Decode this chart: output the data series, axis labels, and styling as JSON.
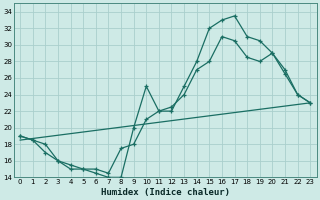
{
  "xlabel": "Humidex (Indice chaleur)",
  "background_color": "#ceeae6",
  "grid_color": "#aacfcc",
  "line_color": "#1a6e63",
  "xlim": [
    -0.5,
    23.5
  ],
  "ylim": [
    14,
    35
  ],
  "xticks": [
    0,
    1,
    2,
    3,
    4,
    5,
    6,
    7,
    8,
    9,
    10,
    11,
    12,
    13,
    14,
    15,
    16,
    17,
    18,
    19,
    20,
    21,
    22,
    23
  ],
  "yticks": [
    14,
    16,
    18,
    20,
    22,
    24,
    26,
    28,
    30,
    32,
    34
  ],
  "line1_x": [
    0,
    1,
    2,
    3,
    4,
    5,
    6,
    7,
    8,
    9,
    10,
    11,
    12,
    13,
    14,
    15,
    16,
    17,
    18,
    19,
    20,
    21,
    22,
    23
  ],
  "line1_y": [
    19,
    18.5,
    17,
    16,
    15,
    15,
    14.5,
    14,
    14,
    20,
    25,
    22,
    22,
    25,
    28,
    32,
    33,
    33.5,
    31,
    30.5,
    29,
    27,
    24,
    23
  ],
  "line2_x": [
    0,
    1,
    2,
    3,
    4,
    5,
    6,
    7,
    8,
    9,
    10,
    11,
    12,
    13,
    14,
    15,
    16,
    17,
    18,
    19,
    20,
    21,
    22,
    23
  ],
  "line2_y": [
    19,
    18.5,
    18,
    16,
    15.5,
    15,
    15,
    14.5,
    17.5,
    18,
    21,
    22,
    22.5,
    24,
    27,
    28,
    31,
    30.5,
    28.5,
    28,
    29,
    26.5,
    24,
    23
  ],
  "line3_x": [
    0,
    23
  ],
  "line3_y": [
    18.5,
    23
  ]
}
